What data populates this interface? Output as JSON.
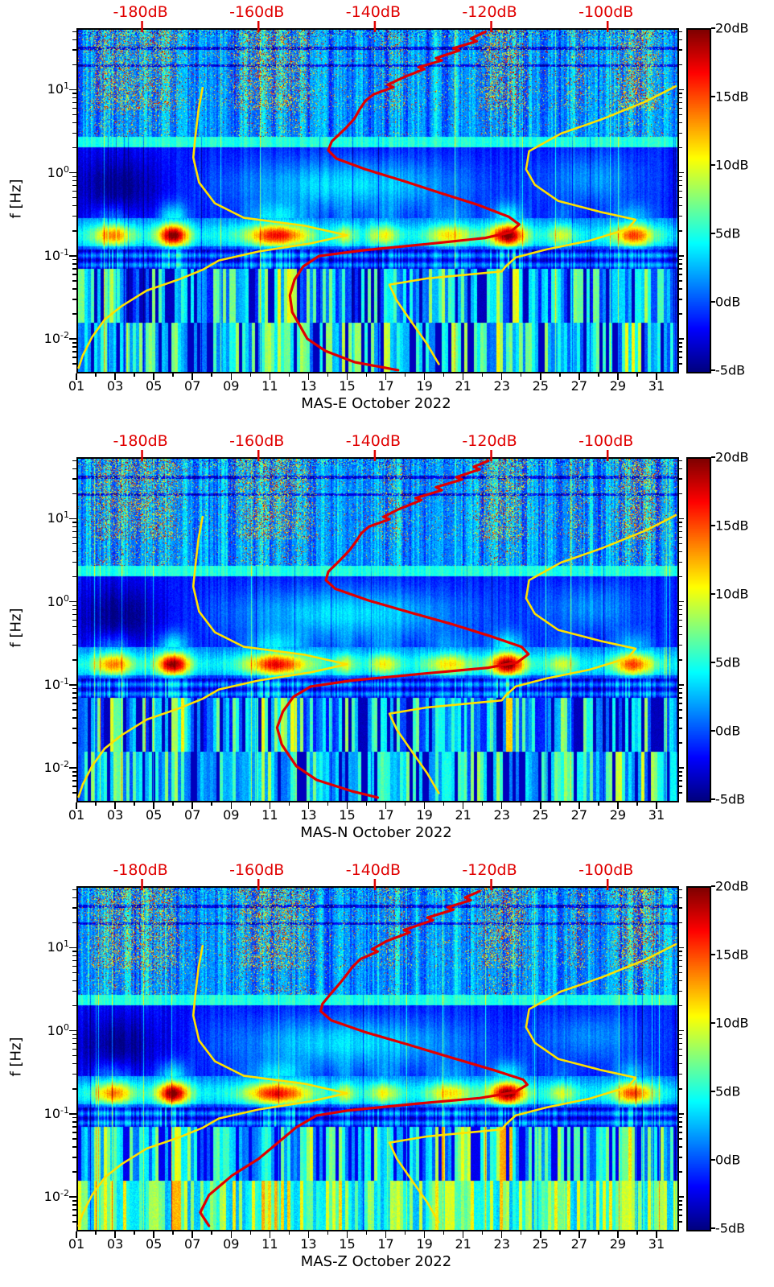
{
  "page": {
    "background": "#ffffff"
  },
  "colors": {
    "red_accent": "#e00000",
    "yellow_curve": "#ffe000",
    "axis": "#000000"
  },
  "overlay_models": {
    "color": "#ffe000",
    "low_noise_model_points_db_hz": [
      [
        -169.6,
        11
      ],
      [
        -170.3,
        6
      ],
      [
        -170.8,
        3
      ],
      [
        -171.2,
        1.6
      ],
      [
        -170.2,
        0.8
      ],
      [
        -167.5,
        0.45
      ],
      [
        -162.5,
        0.3
      ],
      [
        -152,
        0.24
      ],
      [
        -144.8,
        0.185
      ],
      [
        -151,
        0.148
      ],
      [
        -160,
        0.118
      ],
      [
        -166.8,
        0.092
      ],
      [
        -169.6,
        0.071
      ],
      [
        -173.5,
        0.055
      ],
      [
        -179.2,
        0.04
      ],
      [
        -183.5,
        0.026
      ],
      [
        -186.4,
        0.018
      ],
      [
        -188.6,
        0.011
      ],
      [
        -190.2,
        0.0066
      ],
      [
        -190.9,
        0.0047
      ]
    ],
    "high_noise_model_points_db_hz": [
      [
        -88.3,
        11.5
      ],
      [
        -93.5,
        7.5
      ],
      [
        -101,
        4.6
      ],
      [
        -108,
        3.1
      ],
      [
        -113.5,
        1.9
      ],
      [
        -114,
        1.15
      ],
      [
        -112.5,
        0.75
      ],
      [
        -108.5,
        0.48
      ],
      [
        -101,
        0.35
      ],
      [
        -95.2,
        0.285
      ],
      [
        -96.5,
        0.22
      ],
      [
        -103,
        0.16
      ],
      [
        -110.5,
        0.125
      ],
      [
        -115.8,
        0.1
      ],
      [
        -117.5,
        0.078
      ],
      [
        -118.2,
        0.068
      ],
      [
        -131,
        0.056
      ],
      [
        -137.5,
        0.047
      ],
      [
        -136.2,
        0.03
      ],
      [
        -133.5,
        0.016
      ],
      [
        -131,
        0.009
      ],
      [
        -129,
        0.0052
      ]
    ]
  },
  "texture": {
    "microseism_band_hz": [
      0.1,
      0.3
    ],
    "microseism_events": [
      [
        2.8,
        1.0,
        0.6
      ],
      [
        5.9,
        0.8,
        1.0
      ],
      [
        11.3,
        1.6,
        0.8
      ],
      [
        14.8,
        0.5,
        0.35
      ],
      [
        16.8,
        0.8,
        0.4
      ],
      [
        20.2,
        1.2,
        0.45
      ],
      [
        23.2,
        0.9,
        1.0
      ],
      [
        26.0,
        0.7,
        0.35
      ],
      [
        29.7,
        1.0,
        0.7
      ]
    ],
    "hf_burst_events": [
      [
        2.3,
        0.6,
        0.8
      ],
      [
        3.3,
        0.6,
        0.9
      ],
      [
        4.4,
        0.6,
        0.8
      ],
      [
        5.5,
        0.7,
        0.9
      ],
      [
        9.6,
        0.6,
        0.7
      ],
      [
        10.6,
        0.6,
        0.9
      ],
      [
        11.6,
        0.6,
        0.9
      ],
      [
        12.6,
        0.6,
        0.7
      ],
      [
        17.3,
        0.6,
        0.5
      ],
      [
        22.4,
        0.7,
        0.9
      ],
      [
        23.5,
        0.7,
        0.9
      ],
      [
        26.8,
        0.5,
        0.5
      ],
      [
        29.4,
        0.7,
        0.8
      ],
      [
        30.4,
        0.7,
        0.9
      ]
    ]
  },
  "chart_data": [
    {
      "type": "heatmap",
      "title": "MAS-E October 2022",
      "ylabel": "f [Hz]",
      "colormap": "jet",
      "x_ticks": [
        "01",
        "03",
        "05",
        "07",
        "09",
        "11",
        "13",
        "15",
        "17",
        "19",
        "21",
        "23",
        "25",
        "27",
        "29",
        "31"
      ],
      "x_tick_days": [
        1,
        3,
        5,
        7,
        9,
        11,
        13,
        15,
        17,
        19,
        21,
        23,
        25,
        27,
        29,
        31
      ],
      "x_range_days": [
        1,
        32
      ],
      "y_scale": "log",
      "y_ticks": [
        "10^1",
        "10^0",
        "10^-1",
        "10^-2"
      ],
      "y_tick_values": [
        10,
        1,
        0.1,
        0.01
      ],
      "freq_range_hz": [
        0.0042,
        55
      ],
      "top_axis": {
        "ticks": [
          "-180dB",
          "-160dB",
          "-140dB",
          "-120dB",
          "-100dB"
        ],
        "tick_values": [
          -180,
          -160,
          -140,
          -120,
          -100
        ],
        "range_db": [
          -191,
          -88
        ],
        "color": "#e00000"
      },
      "colorbar": {
        "ticks": [
          "20dB",
          "15dB",
          "10dB",
          "5dB",
          "0dB",
          "-5dB"
        ],
        "range_db": [
          -5,
          20
        ],
        "colormap": "jet"
      },
      "median_psd": {
        "color": "#e00000",
        "points_db_hz": [
          [
            -121,
            52
          ],
          [
            -123.5,
            43
          ],
          [
            -122.5,
            40
          ],
          [
            -126.5,
            33
          ],
          [
            -125.5,
            31
          ],
          [
            -129.5,
            25
          ],
          [
            -128.5,
            23.5
          ],
          [
            -132.5,
            19.5
          ],
          [
            -131.5,
            18.5
          ],
          [
            -135,
            14.8
          ],
          [
            -137.8,
            12
          ],
          [
            -136.8,
            11.2
          ],
          [
            -140.2,
            9.2
          ],
          [
            -141.6,
            7.7
          ],
          [
            -142.6,
            6.1
          ],
          [
            -143.5,
            4.7
          ],
          [
            -145,
            3.6
          ],
          [
            -147.4,
            2.5
          ],
          [
            -148,
            1.95
          ],
          [
            -146.6,
            1.55
          ],
          [
            -141.6,
            1.15
          ],
          [
            -135,
            0.83
          ],
          [
            -128.8,
            0.6
          ],
          [
            -122.3,
            0.43
          ],
          [
            -117,
            0.31
          ],
          [
            -115.2,
            0.25
          ],
          [
            -116.8,
            0.2
          ],
          [
            -121,
            0.172
          ],
          [
            -131,
            0.145
          ],
          [
            -142,
            0.122
          ],
          [
            -149.6,
            0.104
          ],
          [
            -152.3,
            0.078
          ],
          [
            -153.8,
            0.054
          ],
          [
            -154.6,
            0.035
          ],
          [
            -154.2,
            0.022
          ],
          [
            -151.6,
            0.0105
          ],
          [
            -148.5,
            0.0075
          ],
          [
            -143.5,
            0.0055
          ],
          [
            -136,
            0.0044
          ]
        ]
      }
    },
    {
      "type": "heatmap",
      "title": "MAS-N October 2022",
      "ylabel": "f [Hz]",
      "colormap": "jet",
      "x_ticks": [
        "01",
        "03",
        "05",
        "07",
        "09",
        "11",
        "13",
        "15",
        "17",
        "19",
        "21",
        "23",
        "25",
        "27",
        "29",
        "31"
      ],
      "x_tick_days": [
        1,
        3,
        5,
        7,
        9,
        11,
        13,
        15,
        17,
        19,
        21,
        23,
        25,
        27,
        29,
        31
      ],
      "x_range_days": [
        1,
        32
      ],
      "y_scale": "log",
      "y_ticks": [
        "10^1",
        "10^0",
        "10^-1",
        "10^-2"
      ],
      "y_tick_values": [
        10,
        1,
        0.1,
        0.01
      ],
      "freq_range_hz": [
        0.0042,
        55
      ],
      "top_axis": {
        "ticks": [
          "-180dB",
          "-160dB",
          "-140dB",
          "-120dB",
          "-100dB"
        ],
        "tick_values": [
          -180,
          -160,
          -140,
          -120,
          -100
        ],
        "range_db": [
          -191,
          -88
        ],
        "color": "#e00000"
      },
      "colorbar": {
        "ticks": [
          "20dB",
          "15dB",
          "10dB",
          "5dB",
          "0dB",
          "-5dB"
        ],
        "range_db": [
          -5,
          20
        ],
        "colormap": "jet"
      },
      "median_psd": {
        "color": "#e00000",
        "points_db_hz": [
          [
            -120.5,
            52
          ],
          [
            -123,
            44
          ],
          [
            -122,
            41
          ],
          [
            -126,
            33
          ],
          [
            -125,
            31
          ],
          [
            -129.5,
            25
          ],
          [
            -128.5,
            23
          ],
          [
            -133,
            18.5
          ],
          [
            -132,
            17.5
          ],
          [
            -136,
            13.5
          ],
          [
            -138.5,
            11
          ],
          [
            -137.5,
            10.3
          ],
          [
            -141,
            8.4
          ],
          [
            -142.3,
            7
          ],
          [
            -143.2,
            5.6
          ],
          [
            -144.3,
            4.4
          ],
          [
            -146,
            3.3
          ],
          [
            -148,
            2.4
          ],
          [
            -148.4,
            1.9
          ],
          [
            -146.8,
            1.5
          ],
          [
            -141,
            1.08
          ],
          [
            -134,
            0.78
          ],
          [
            -127,
            0.57
          ],
          [
            -120,
            0.4
          ],
          [
            -114.8,
            0.3
          ],
          [
            -113.6,
            0.245
          ],
          [
            -115.5,
            0.195
          ],
          [
            -120.5,
            0.168
          ],
          [
            -132,
            0.142
          ],
          [
            -144,
            0.118
          ],
          [
            -151,
            0.1
          ],
          [
            -154,
            0.075
          ],
          [
            -155.8,
            0.05
          ],
          [
            -156.8,
            0.032
          ],
          [
            -156,
            0.02
          ],
          [
            -153.5,
            0.011
          ],
          [
            -150,
            0.0075
          ],
          [
            -144,
            0.0055
          ],
          [
            -139.5,
            0.0046
          ]
        ]
      }
    },
    {
      "type": "heatmap",
      "title": "MAS-Z October 2022",
      "ylabel": "f [Hz]",
      "colormap": "jet",
      "x_ticks": [
        "01",
        "03",
        "05",
        "07",
        "09",
        "11",
        "13",
        "15",
        "17",
        "19",
        "21",
        "23",
        "25",
        "27",
        "29",
        "31"
      ],
      "x_tick_days": [
        1,
        3,
        5,
        7,
        9,
        11,
        13,
        15,
        17,
        19,
        21,
        23,
        25,
        27,
        29,
        31
      ],
      "x_range_days": [
        1,
        32
      ],
      "y_scale": "log",
      "y_ticks": [
        "10^1",
        "10^0",
        "10^-1",
        "10^-2"
      ],
      "y_tick_values": [
        10,
        1,
        0.1,
        0.01
      ],
      "freq_range_hz": [
        0.0042,
        55
      ],
      "top_axis": {
        "ticks": [
          "-180dB",
          "-160dB",
          "-140dB",
          "-120dB",
          "-100dB"
        ],
        "tick_values": [
          -180,
          -160,
          -140,
          -120,
          -100
        ],
        "range_db": [
          -191,
          -88
        ],
        "color": "#e00000"
      },
      "colorbar": {
        "ticks": [
          "20dB",
          "15dB",
          "10dB",
          "5dB",
          "0dB",
          "-5dB"
        ],
        "range_db": [
          -5,
          20
        ],
        "colormap": "jet"
      },
      "median_psd": {
        "color": "#e00000",
        "points_db_hz": [
          [
            -122,
            50
          ],
          [
            -124.5,
            42
          ],
          [
            -123.5,
            39
          ],
          [
            -127.5,
            32
          ],
          [
            -126.5,
            30
          ],
          [
            -131,
            24
          ],
          [
            -130,
            22.5
          ],
          [
            -135,
            17
          ],
          [
            -134,
            16
          ],
          [
            -138,
            12.5
          ],
          [
            -140.5,
            10
          ],
          [
            -139.5,
            9.4
          ],
          [
            -142.5,
            7.6
          ],
          [
            -143.8,
            6.2
          ],
          [
            -144.8,
            5
          ],
          [
            -146,
            3.9
          ],
          [
            -147.6,
            2.9
          ],
          [
            -149,
            2.2
          ],
          [
            -149.3,
            1.8
          ],
          [
            -147.5,
            1.4
          ],
          [
            -141.5,
            1
          ],
          [
            -134.5,
            0.72
          ],
          [
            -127,
            0.5
          ],
          [
            -119.5,
            0.35
          ],
          [
            -114.5,
            0.27
          ],
          [
            -113.8,
            0.235
          ],
          [
            -116,
            0.19
          ],
          [
            -122,
            0.162
          ],
          [
            -133,
            0.138
          ],
          [
            -144.5,
            0.115
          ],
          [
            -150,
            0.1
          ],
          [
            -153.5,
            0.072
          ],
          [
            -156.5,
            0.048
          ],
          [
            -160,
            0.03
          ],
          [
            -164.5,
            0.019
          ],
          [
            -168.5,
            0.011
          ],
          [
            -170,
            0.0068
          ],
          [
            -168.5,
            0.0047
          ]
        ]
      }
    }
  ]
}
